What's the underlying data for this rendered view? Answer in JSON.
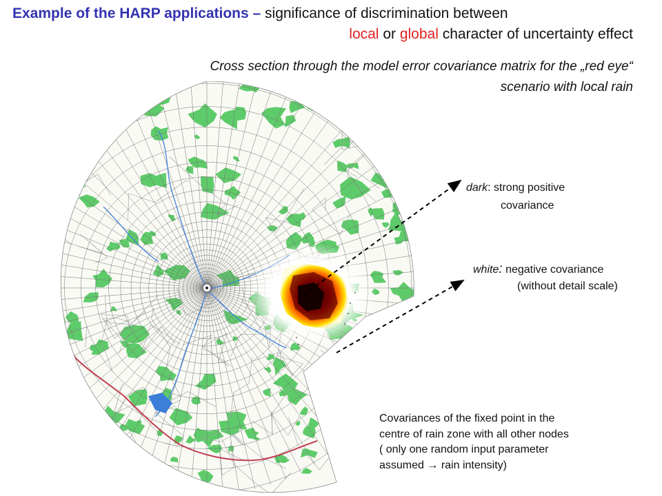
{
  "title": {
    "line1_blue": "Example of the HARP applications –",
    "line1_black": " significance of discrimination between",
    "line2_local": "local",
    "line2_or": " or ",
    "line2_global": "global",
    "line2_rest": " character of uncertainty effect"
  },
  "subtitle": {
    "line1": "Cross section through the model error covariance matrix for the „red eye“",
    "line2": "scenario with local rain"
  },
  "annotations": {
    "dark_term": "dark",
    "dark_rest": ": strong positive",
    "dark_line2": "covariance",
    "white_term": "white",
    "white_colon": ":",
    "white_rest": " negative covariance",
    "white_line2": "(without detail scale)"
  },
  "bottom_note": {
    "line1": "Covariances of the fixed point in the",
    "line2": "centre of rain zone with all other nodes",
    "line3": "( only one random input parameter",
    "line4": "assumed → rain intensity)"
  },
  "colors": {
    "title_blue": "#3333b0",
    "highlight_red": "#e02020",
    "forest_green": "#5ecb6a",
    "border_red": "#c04050",
    "river_blue": "#4a86d8",
    "covariance_dark": "#200000",
    "covariance_mid": "#c81000",
    "covariance_light": "#ffe000"
  }
}
